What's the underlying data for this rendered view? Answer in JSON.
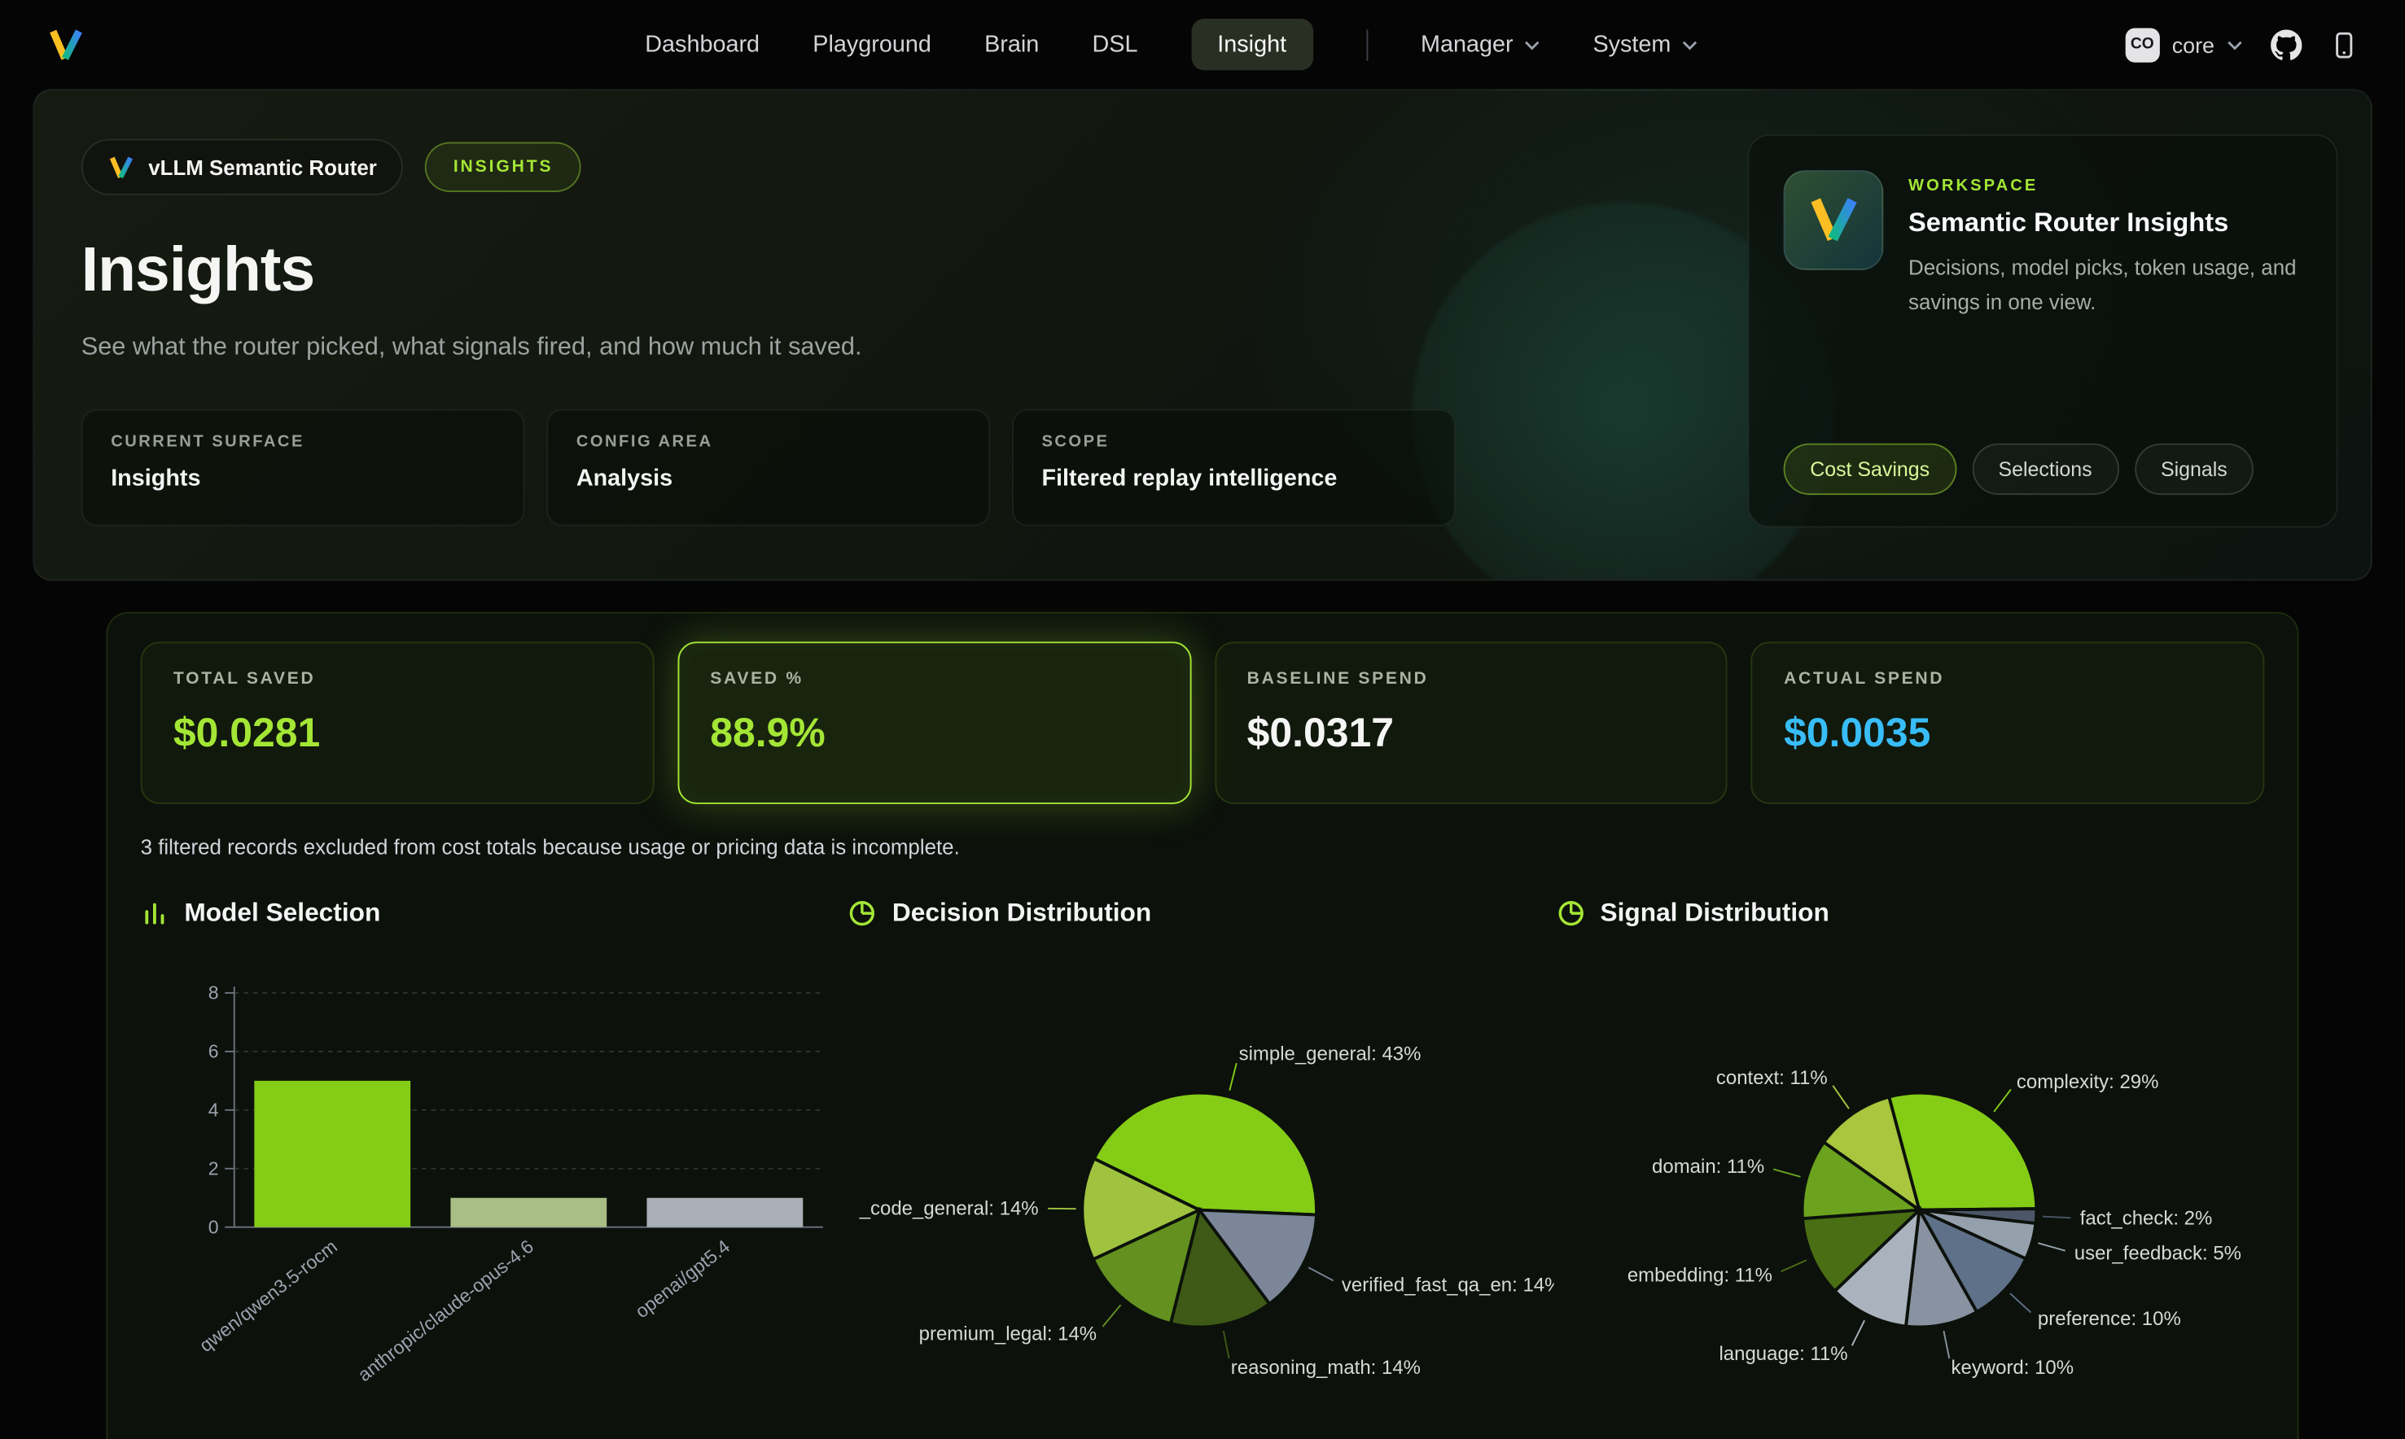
{
  "navbar": {
    "items": [
      {
        "label": "Dashboard",
        "active": false
      },
      {
        "label": "Playground",
        "active": false
      },
      {
        "label": "Brain",
        "active": false
      },
      {
        "label": "DSL",
        "active": false
      },
      {
        "label": "Insight",
        "active": true
      }
    ],
    "menus": [
      {
        "label": "Manager"
      },
      {
        "label": "System"
      }
    ],
    "account": {
      "badge": "CO",
      "name": "core"
    }
  },
  "hero": {
    "app_badge": "vLLM Semantic Router",
    "section_badge": "INSIGHTS",
    "title": "Insights",
    "subtitle": "See what the router picked, what signals fired, and how much it saved.",
    "info_cards": [
      {
        "label": "CURRENT SURFACE",
        "value": "Insights"
      },
      {
        "label": "CONFIG AREA",
        "value": "Analysis"
      },
      {
        "label": "SCOPE",
        "value": "Filtered replay intelligence"
      }
    ],
    "workspace": {
      "eyebrow": "WORKSPACE",
      "title": "Semantic Router Insights",
      "description": "Decisions, model picks, token usage, and savings in one view.",
      "chips": [
        {
          "label": "Cost Savings",
          "active": true
        },
        {
          "label": "Selections",
          "active": false
        },
        {
          "label": "Signals",
          "active": false
        }
      ]
    }
  },
  "stats": [
    {
      "label": "TOTAL SAVED",
      "value": "$0.0281",
      "color": "#a3e635",
      "highlight": false
    },
    {
      "label": "SAVED %",
      "value": "88.9%",
      "color": "#a3e635",
      "highlight": true
    },
    {
      "label": "BASELINE SPEND",
      "value": "$0.0317",
      "color": "#f5f5f4",
      "highlight": false
    },
    {
      "label": "ACTUAL SPEND",
      "value": "$0.0035",
      "color": "#38bdf8",
      "highlight": false
    }
  ],
  "note": "3 filtered records excluded from cost totals because usage or pricing data is incomplete.",
  "accent_color": "#a3e635",
  "chart_data": [
    {
      "type": "bar",
      "title": "Model Selection",
      "categories": [
        "qwen/qwen3.5-rocm",
        "anthropic/claude-opus-4.6",
        "openai/gpt5.4"
      ],
      "values": [
        5,
        1,
        1
      ],
      "colors": [
        "#84cc16",
        "#a9bd86",
        "#a9afb6"
      ],
      "ylim": [
        0,
        8
      ],
      "yticks": [
        0,
        2,
        4,
        6,
        8
      ],
      "grid": true,
      "legend": false
    },
    {
      "type": "pie",
      "title": "Decision Distribution",
      "start_angle": 154,
      "slices": [
        {
          "name": "simple_general",
          "value": 43,
          "color": "#84cc16"
        },
        {
          "name": "verified_fast_qa_en",
          "value": 14,
          "color": "#7b8799"
        },
        {
          "name": "reasoning_math",
          "value": 14,
          "color": "#3e5a16"
        },
        {
          "name": "premium_legal",
          "value": 14,
          "color": "#63901f"
        },
        {
          "name": "_code_general",
          "value": 14,
          "color": "#9fc33f"
        }
      ]
    },
    {
      "type": "pie",
      "title": "Signal Distribution",
      "start_angle": 105,
      "slices": [
        {
          "name": "complexity",
          "value": 29,
          "color": "#84cc16"
        },
        {
          "name": "fact_check",
          "value": 2,
          "color": "#4b5768"
        },
        {
          "name": "user_feedback",
          "value": 5,
          "color": "#95a0ad"
        },
        {
          "name": "preference",
          "value": 10,
          "color": "#5f7188"
        },
        {
          "name": "keyword",
          "value": 10,
          "color": "#8892a0"
        },
        {
          "name": "language",
          "value": 11,
          "color": "#aab3bd"
        },
        {
          "name": "embedding",
          "value": 11,
          "color": "#4a6e14"
        },
        {
          "name": "domain",
          "value": 11,
          "color": "#6ba21e"
        },
        {
          "name": "context",
          "value": 11,
          "color": "#a8c63e"
        }
      ]
    }
  ]
}
